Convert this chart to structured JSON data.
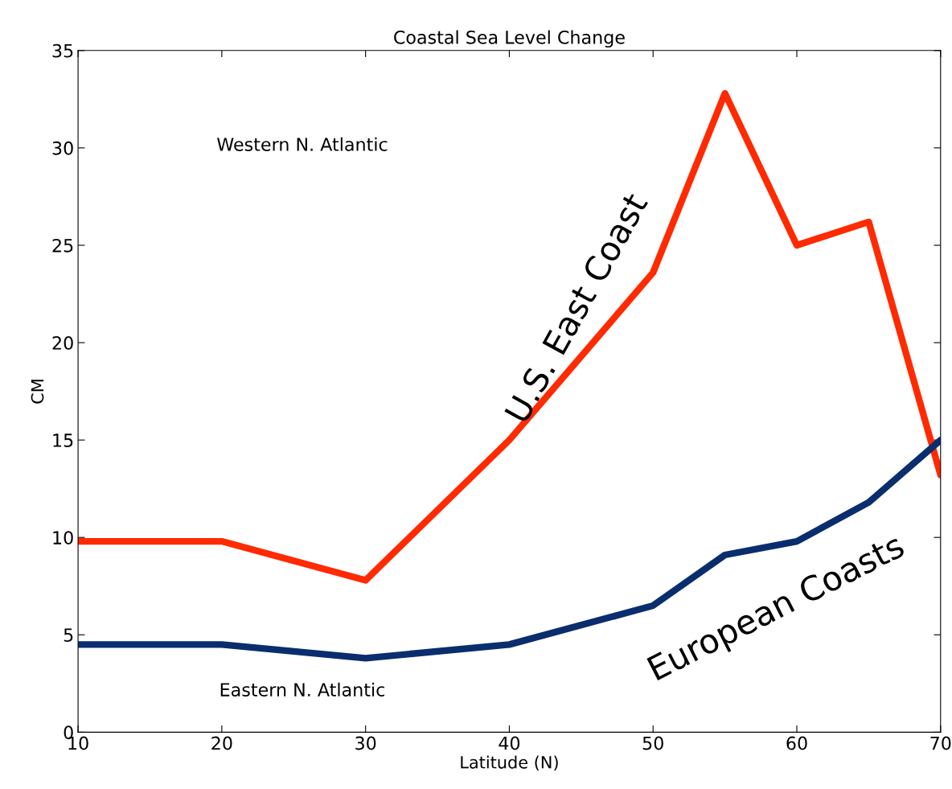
{
  "chart_data": {
    "type": "line",
    "title": "Coastal Sea Level Change",
    "xlabel": "Latitude (N)",
    "ylabel": "CM",
    "x": [
      10,
      20,
      30,
      40,
      50,
      55,
      60,
      65,
      70
    ],
    "series": [
      {
        "name": "U.S. East Coast",
        "color": "#ff2a00",
        "values": [
          9.8,
          9.8,
          7.8,
          15,
          23.6,
          32.8,
          25,
          26.2,
          13.2
        ]
      },
      {
        "name": "European Coasts",
        "color": "#0a2d6e",
        "values": [
          4.5,
          4.5,
          3.8,
          4.5,
          6.5,
          9.1,
          9.8,
          11.8,
          15
        ]
      }
    ],
    "annotations": [
      "Western N. Atlantic",
      "Eastern N. Atlantic"
    ],
    "xlim": [
      10,
      70
    ],
    "ylim": [
      0,
      35
    ],
    "xticks": [
      10,
      20,
      30,
      40,
      50,
      60,
      70
    ],
    "yticks": [
      0,
      5,
      10,
      15,
      20,
      25,
      30,
      35
    ],
    "grid": false,
    "legend": false,
    "marker": "none",
    "line_style": "solid"
  }
}
